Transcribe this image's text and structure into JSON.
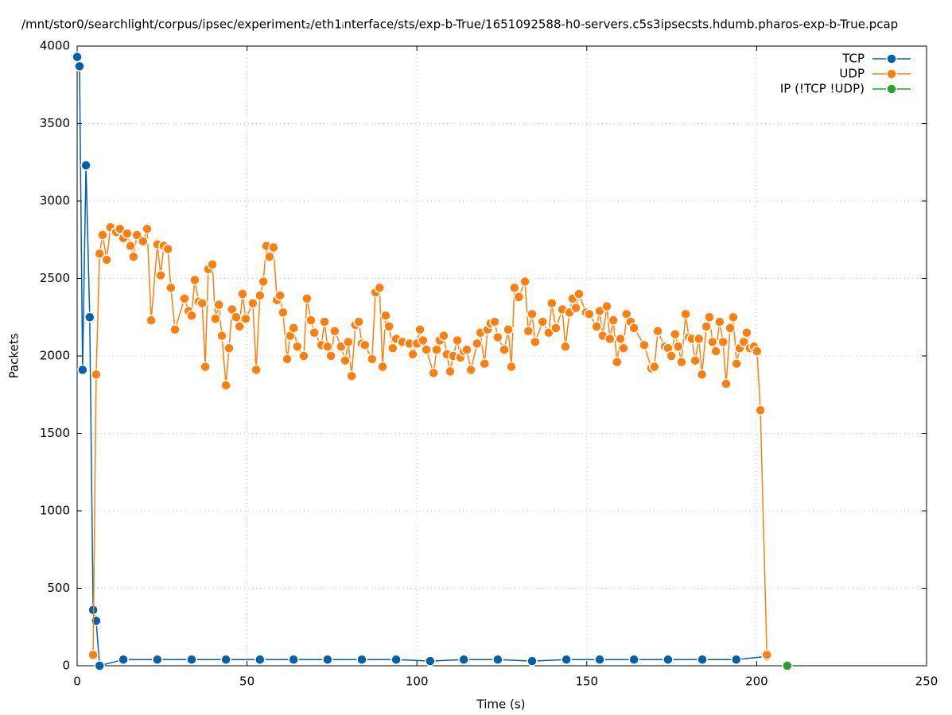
{
  "chart_data": {
    "type": "line",
    "title": "/mnt/stor0/searchlight/corpus/ipsec/experiment₂/eth1ᵢnterface/sts/exp-b-True/1651092588-h0-servers.c5s3ipsecsts.hdumb.pharos-exp-b-True.pcap",
    "xlabel": "Time (s)",
    "ylabel": "Packets",
    "xlim": [
      0,
      250
    ],
    "xticks": [
      0,
      50,
      100,
      150,
      200,
      250
    ],
    "ylim": [
      0,
      4000
    ],
    "yticks": [
      0,
      500,
      1000,
      1500,
      2000,
      2500,
      3000,
      3500,
      4000
    ],
    "grid": true,
    "legend": "top-right",
    "series": [
      {
        "name": "TCP",
        "color": "#0060ad",
        "x": [
          0,
          0.7,
          1.6,
          2.6,
          3.7,
          4.7,
          5.6,
          6.6,
          13.6,
          23.6,
          33.7,
          43.8,
          53.8,
          63.7,
          73.7,
          83.8,
          93.9,
          103.9,
          113.8,
          123.8,
          133.9,
          144,
          153.8,
          163.9,
          173.9,
          184,
          194,
          203
        ],
        "values": [
          3930,
          3870,
          1910,
          3230,
          2250,
          360,
          290,
          0,
          40,
          40,
          40,
          40,
          40,
          40,
          40,
          40,
          40,
          30,
          40,
          40,
          30,
          40,
          40,
          40,
          40,
          40,
          40,
          60
        ]
      },
      {
        "name": "UDP",
        "color": "#ff7f0e",
        "x": [
          4.7,
          5.6,
          6.6,
          7.5,
          8.7,
          9.8,
          11.5,
          12.6,
          13.6,
          14.7,
          15.7,
          16.6,
          17.6,
          19.4,
          20.6,
          21.8,
          23.6,
          24.6,
          25.5,
          26.7,
          27.6,
          28.8,
          31.6,
          32.8,
          33.7,
          34.6,
          35.8,
          36.8,
          37.7,
          38.6,
          39.8,
          40.7,
          41.7,
          42.6,
          43.8,
          44.7,
          45.6,
          46.8,
          47.8,
          48.7,
          49.6,
          51.7,
          52.7,
          53.8,
          54.8,
          55.7,
          56.6,
          57.8,
          58.8,
          59.7,
          60.6,
          61.8,
          62.7,
          63.7,
          64.8,
          66.7,
          67.6,
          68.8,
          69.8,
          71.9,
          72.8,
          73.7,
          74.7,
          75.8,
          77.7,
          78.9,
          79.8,
          80.8,
          81.9,
          82.9,
          83.8,
          84.7,
          86.8,
          87.8,
          89.0,
          89.9,
          90.8,
          91.8,
          92.9,
          93.9,
          95.7,
          97.8,
          98.8,
          100.0,
          100.9,
          101.8,
          102.8,
          104.9,
          105.8,
          106.7,
          107.9,
          108.8,
          109.8,
          110.7,
          111.9,
          112.8,
          113.8,
          114.7,
          115.9,
          117.7,
          118.7,
          119.9,
          120.8,
          121.7,
          122.9,
          123.8,
          125.7,
          126.9,
          127.8,
          128.7,
          130.0,
          131.8,
          132.8,
          133.9,
          134.8,
          137.0,
          138.8,
          139.7,
          140.9,
          142.8,
          143.7,
          144.9,
          145.8,
          146.8,
          147.7,
          149.8,
          150.7,
          152.9,
          153.8,
          154.7,
          155.9,
          156.8,
          157.8,
          158.9,
          159.9,
          160.8,
          161.7,
          162.9,
          163.9,
          166.9,
          169.0,
          169.9,
          170.9,
          173.0,
          173.9,
          174.9,
          176.0,
          176.9,
          177.9,
          179.1,
          180.0,
          180.9,
          181.9,
          183.0,
          183.9,
          185.2,
          186.1,
          187.0,
          188.0,
          189.1,
          190.1,
          191.0,
          192.2,
          193.1,
          194.1,
          195.0,
          196.2,
          197.1,
          198.0,
          199.2,
          200.1,
          201.1,
          203.0
        ],
        "values": [
          70,
          1880,
          2660,
          2780,
          2620,
          2830,
          2800,
          2820,
          2760,
          2790,
          2710,
          2640,
          2780,
          2740,
          2820,
          2230,
          2720,
          2520,
          2710,
          2690,
          2440,
          2170,
          2370,
          2290,
          2260,
          2490,
          2350,
          2340,
          1930,
          2560,
          2590,
          2240,
          2330,
          2130,
          1810,
          2050,
          2300,
          2250,
          2190,
          2400,
          2240,
          2340,
          1910,
          2390,
          2480,
          2710,
          2640,
          2700,
          2360,
          2390,
          2280,
          1980,
          2130,
          2180,
          2060,
          2000,
          2370,
          2230,
          2150,
          2070,
          2220,
          2060,
          2000,
          2160,
          2060,
          1970,
          2090,
          1870,
          2200,
          2220,
          2080,
          2070,
          1980,
          2410,
          2440,
          1930,
          2260,
          2190,
          2050,
          2110,
          2090,
          2080,
          2010,
          2080,
          2170,
          2100,
          2040,
          1890,
          2040,
          2100,
          2130,
          2010,
          1900,
          2000,
          2100,
          1990,
          2030,
          2040,
          1910,
          2080,
          2150,
          1950,
          2170,
          2210,
          2220,
          2120,
          2040,
          2170,
          1930,
          2440,
          2380,
          2480,
          2160,
          2270,
          2090,
          2220,
          2150,
          2340,
          2180,
          2300,
          2060,
          2280,
          2370,
          2310,
          2400,
          2280,
          2270,
          2190,
          2290,
          2130,
          2320,
          2110,
          2230,
          1960,
          2110,
          2050,
          2270,
          2220,
          2180,
          2070,
          1920,
          1930,
          2160,
          2060,
          2050,
          2000,
          2140,
          2060,
          1960,
          2270,
          2120,
          2110,
          1970,
          2110,
          1880,
          2190,
          2250,
          2090,
          2030,
          2220,
          2090,
          1820,
          2180,
          2250,
          1950,
          2050,
          2090,
          2150,
          2050,
          2060,
          2030,
          1650,
          70
        ]
      },
      {
        "name": "IP (!TCP  !UDP)",
        "color": "#2ca02c",
        "x": [
          209
        ],
        "values": [
          0
        ]
      }
    ]
  }
}
